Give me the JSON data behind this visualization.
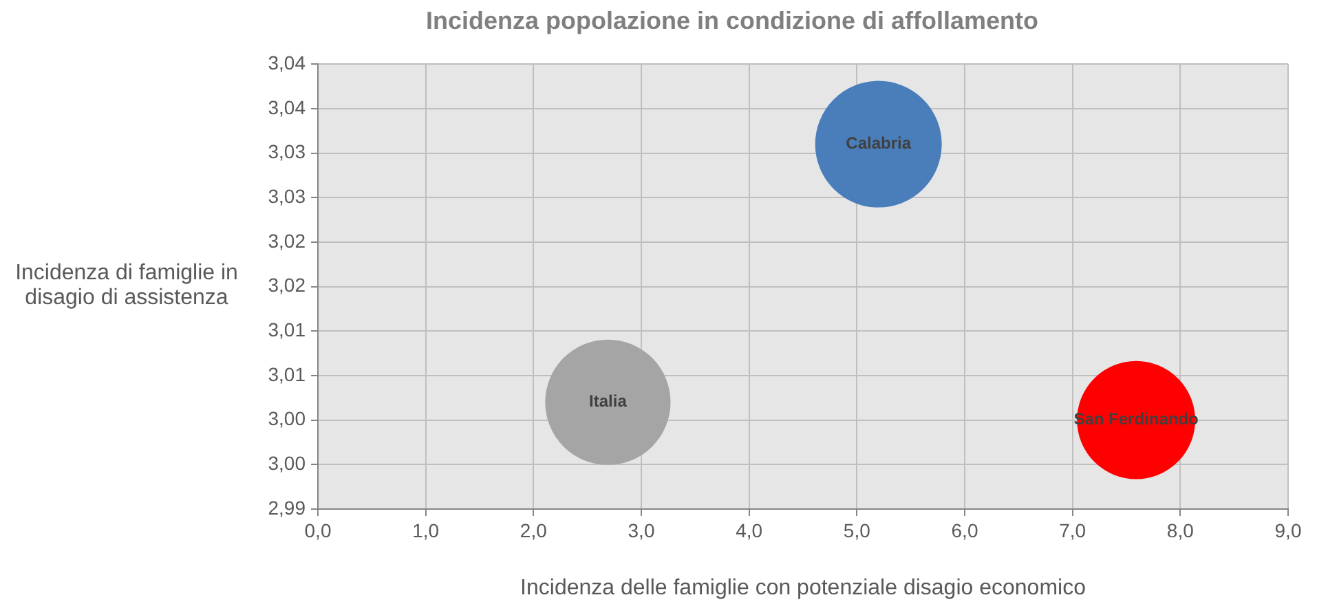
{
  "chart_data": {
    "type": "bubble",
    "title": "Incidenza popolazione in condizione di affollamento",
    "xlabel": "Incidenza delle famiglie con potenziale disagio economico",
    "ylabel": "Incidenza di famiglie in disagio di assistenza",
    "series": [
      {
        "name": "Italia",
        "color": "#a5a5a5",
        "x": [
          2.69
        ],
        "values": [
          3.002
        ],
        "sizes": [
          0.98
        ]
      },
      {
        "name": "Calabria",
        "color": "#4a7ebb",
        "x": [
          5.2
        ],
        "values": [
          3.031
        ],
        "sizes": [
          1
        ]
      },
      {
        "name": "San Ferdinando",
        "color": "#ff0000",
        "x": [
          7.59
        ],
        "values": [
          3.0
        ],
        "sizes": [
          0.87
        ]
      }
    ],
    "xlim": [
      0,
      9
    ],
    "xticks": [
      {
        "value": 0,
        "label": "0,0"
      },
      {
        "value": 1,
        "label": "1,0"
      },
      {
        "value": 2,
        "label": "2,0"
      },
      {
        "value": 3,
        "label": "3,0"
      },
      {
        "value": 4,
        "label": "4,0"
      },
      {
        "value": 5,
        "label": "5,0"
      },
      {
        "value": 6,
        "label": "6,0"
      },
      {
        "value": 7,
        "label": "7,0"
      },
      {
        "value": 8,
        "label": "8,0"
      },
      {
        "value": 9,
        "label": "9,0"
      }
    ],
    "ylim": [
      2.99,
      3.04
    ],
    "yticks": [
      {
        "value": 2.99,
        "label": "2,99"
      },
      {
        "value": 2.995,
        "label": "3,00"
      },
      {
        "value": 3.0,
        "label": "3,00"
      },
      {
        "value": 3.005,
        "label": "3,01"
      },
      {
        "value": 3.01,
        "label": "3,01"
      },
      {
        "value": 3.015,
        "label": "3,02"
      },
      {
        "value": 3.02,
        "label": "3,02"
      },
      {
        "value": 3.025,
        "label": "3,03"
      },
      {
        "value": 3.03,
        "label": "3,03"
      },
      {
        "value": 3.035,
        "label": "3,04"
      },
      {
        "value": 3.04,
        "label": "3,04"
      }
    ],
    "grid": true,
    "legend": false
  }
}
